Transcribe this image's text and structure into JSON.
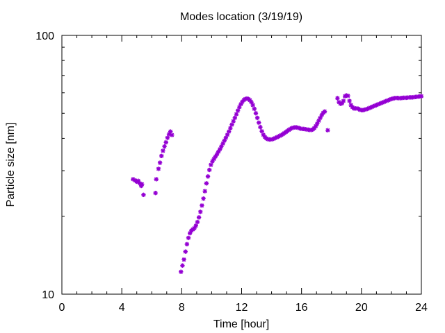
{
  "chart_data": {
    "type": "scatter",
    "title": "Modes location (3/19/19)",
    "xlabel": "Time [hour]",
    "ylabel": "Particle size [nm]",
    "xlim": [
      0,
      24
    ],
    "ylim": [
      10,
      100
    ],
    "yscale": "log",
    "xticks": [
      0,
      4,
      8,
      12,
      16,
      20,
      24
    ],
    "yticks": [
      10,
      100
    ],
    "marker_color": "#9400d3",
    "grid": false,
    "series": [
      {
        "points": [
          [
            4.75,
            27.8
          ],
          [
            4.9,
            27.5
          ],
          [
            5.0,
            27.2
          ],
          [
            5.1,
            27.4
          ],
          [
            5.2,
            26.8
          ],
          [
            5.3,
            26.2
          ],
          [
            5.35,
            26.6
          ],
          [
            5.45,
            24.2
          ],
          [
            6.25,
            24.6
          ],
          [
            6.3,
            27.8
          ],
          [
            6.45,
            30.5
          ],
          [
            6.55,
            32.2
          ],
          [
            6.65,
            34.2
          ],
          [
            6.75,
            35.8
          ],
          [
            6.85,
            37.2
          ],
          [
            6.95,
            38.6
          ],
          [
            7.05,
            40.2
          ],
          [
            7.15,
            41.5
          ],
          [
            7.25,
            42.5
          ],
          [
            7.35,
            41.2
          ],
          [
            7.95,
            12.2
          ],
          [
            8.05,
            12.9
          ],
          [
            8.15,
            13.6
          ],
          [
            8.25,
            14.6
          ],
          [
            8.35,
            15.6
          ],
          [
            8.45,
            16.5
          ],
          [
            8.55,
            17.2
          ],
          [
            8.65,
            17.6
          ],
          [
            8.75,
            17.8
          ],
          [
            8.85,
            18.0
          ],
          [
            8.95,
            18.4
          ],
          [
            9.05,
            19.0
          ],
          [
            9.15,
            19.8
          ],
          [
            9.25,
            20.8
          ],
          [
            9.35,
            22.0
          ],
          [
            9.45,
            23.4
          ],
          [
            9.55,
            25.0
          ],
          [
            9.65,
            26.8
          ],
          [
            9.75,
            28.5
          ],
          [
            9.85,
            30.2
          ],
          [
            9.95,
            31.6
          ],
          [
            10.05,
            32.6
          ],
          [
            10.15,
            33.3
          ],
          [
            10.25,
            34.0
          ],
          [
            10.35,
            34.7
          ],
          [
            10.45,
            35.5
          ],
          [
            10.55,
            36.3
          ],
          [
            10.65,
            37.2
          ],
          [
            10.75,
            38.2
          ],
          [
            10.85,
            39.2
          ],
          [
            10.95,
            40.2
          ],
          [
            11.05,
            41.3
          ],
          [
            11.15,
            42.5
          ],
          [
            11.25,
            43.8
          ],
          [
            11.35,
            45.2
          ],
          [
            11.45,
            46.6
          ],
          [
            11.55,
            48.0
          ],
          [
            11.65,
            49.6
          ],
          [
            11.75,
            51.2
          ],
          [
            11.85,
            52.8
          ],
          [
            11.95,
            54.2
          ],
          [
            12.05,
            55.4
          ],
          [
            12.15,
            56.3
          ],
          [
            12.25,
            56.8
          ],
          [
            12.35,
            57.0
          ],
          [
            12.45,
            56.8
          ],
          [
            12.55,
            56.2
          ],
          [
            12.65,
            55.2
          ],
          [
            12.75,
            53.8
          ],
          [
            12.85,
            52.0
          ],
          [
            12.95,
            50.0
          ],
          [
            13.05,
            48.0
          ],
          [
            13.15,
            46.0
          ],
          [
            13.25,
            44.2
          ],
          [
            13.35,
            42.6
          ],
          [
            13.45,
            41.3
          ],
          [
            13.55,
            40.5
          ],
          [
            13.65,
            40.0
          ],
          [
            13.75,
            39.7
          ],
          [
            13.85,
            39.6
          ],
          [
            13.95,
            39.6
          ],
          [
            14.05,
            39.7
          ],
          [
            14.15,
            39.9
          ],
          [
            14.25,
            40.1
          ],
          [
            14.35,
            40.4
          ],
          [
            14.45,
            40.6
          ],
          [
            14.55,
            40.9
          ],
          [
            14.65,
            41.2
          ],
          [
            14.75,
            41.5
          ],
          [
            14.85,
            41.9
          ],
          [
            14.95,
            42.3
          ],
          [
            15.05,
            42.7
          ],
          [
            15.15,
            43.1
          ],
          [
            15.25,
            43.5
          ],
          [
            15.35,
            43.8
          ],
          [
            15.45,
            44.0
          ],
          [
            15.55,
            44.1
          ],
          [
            15.65,
            44.1
          ],
          [
            15.75,
            44.0
          ],
          [
            15.85,
            43.8
          ],
          [
            15.95,
            43.6
          ],
          [
            16.05,
            43.5
          ],
          [
            16.15,
            43.5
          ],
          [
            16.25,
            43.4
          ],
          [
            16.35,
            43.3
          ],
          [
            16.45,
            43.2
          ],
          [
            16.55,
            43.1
          ],
          [
            16.65,
            43.1
          ],
          [
            16.75,
            43.3
          ],
          [
            16.85,
            43.8
          ],
          [
            16.95,
            44.6
          ],
          [
            17.05,
            45.6
          ],
          [
            17.15,
            46.8
          ],
          [
            17.25,
            48.0
          ],
          [
            17.35,
            49.2
          ],
          [
            17.45,
            50.2
          ],
          [
            17.55,
            50.8
          ],
          [
            17.75,
            43.0
          ],
          [
            18.4,
            57.2
          ],
          [
            18.5,
            55.2
          ],
          [
            18.6,
            54.4
          ],
          [
            18.7,
            54.6
          ],
          [
            18.8,
            55.8
          ],
          [
            18.9,
            58.2
          ],
          [
            19.0,
            58.6
          ],
          [
            19.1,
            58.4
          ],
          [
            19.2,
            55.8
          ],
          [
            19.3,
            53.8
          ],
          [
            19.4,
            52.8
          ],
          [
            19.5,
            52.2
          ],
          [
            19.6,
            52.2
          ],
          [
            19.7,
            52.2
          ],
          [
            19.8,
            52.0
          ],
          [
            19.9,
            51.6
          ],
          [
            20.0,
            51.4
          ],
          [
            20.1,
            51.4
          ],
          [
            20.2,
            51.6
          ],
          [
            20.3,
            51.8
          ],
          [
            20.4,
            52.0
          ],
          [
            20.5,
            52.3
          ],
          [
            20.6,
            52.6
          ],
          [
            20.7,
            52.9
          ],
          [
            20.8,
            53.2
          ],
          [
            20.9,
            53.5
          ],
          [
            21.0,
            53.8
          ],
          [
            21.1,
            54.1
          ],
          [
            21.2,
            54.4
          ],
          [
            21.3,
            54.7
          ],
          [
            21.4,
            55.0
          ],
          [
            21.5,
            55.3
          ],
          [
            21.6,
            55.6
          ],
          [
            21.7,
            55.9
          ],
          [
            21.8,
            56.2
          ],
          [
            21.9,
            56.5
          ],
          [
            22.0,
            56.8
          ],
          [
            22.1,
            57.0
          ],
          [
            22.2,
            57.2
          ],
          [
            22.3,
            57.3
          ],
          [
            22.4,
            57.3
          ],
          [
            22.5,
            57.2
          ],
          [
            22.6,
            57.2
          ],
          [
            22.7,
            57.3
          ],
          [
            22.8,
            57.4
          ],
          [
            22.9,
            57.4
          ],
          [
            23.0,
            57.4
          ],
          [
            23.1,
            57.5
          ],
          [
            23.2,
            57.6
          ],
          [
            23.3,
            57.6
          ],
          [
            23.4,
            57.6
          ],
          [
            23.5,
            57.7
          ],
          [
            23.6,
            57.8
          ],
          [
            23.7,
            57.9
          ],
          [
            23.8,
            58.0
          ],
          [
            23.9,
            58.1
          ],
          [
            24.0,
            58.2
          ]
        ]
      }
    ]
  }
}
